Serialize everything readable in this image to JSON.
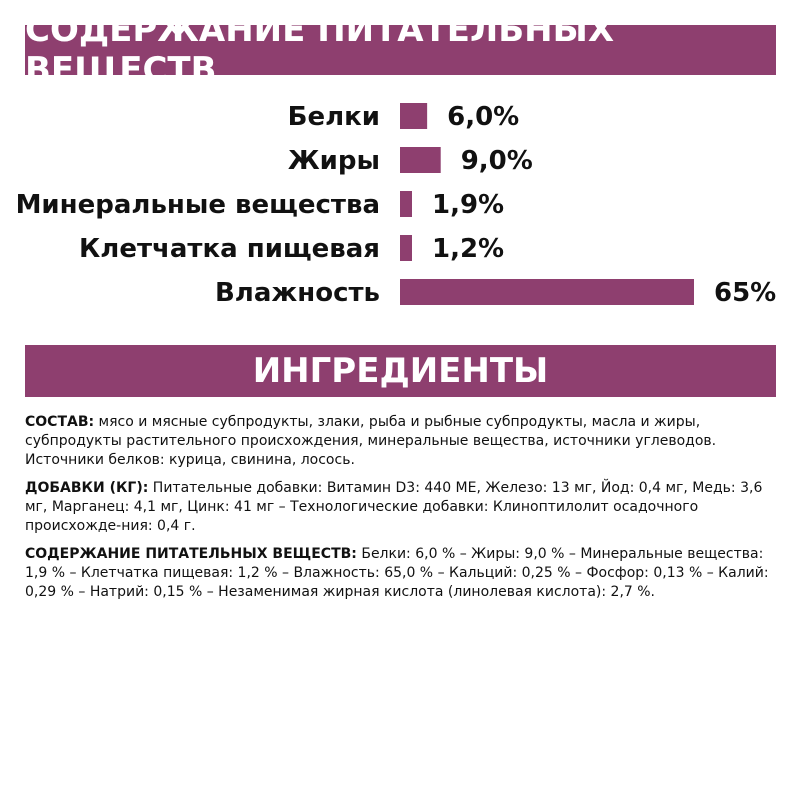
{
  "headings": {
    "nutrients": "СОДЕРЖАНИЕ ПИТАТЕЛЬНЫХ ВЕЩЕСТВ",
    "ingredients": "ИНГРЕДИЕНТЫ"
  },
  "colors": {
    "accent": "#8e3f6f",
    "text": "#111111"
  },
  "chart_data": {
    "type": "bar",
    "orientation": "horizontal",
    "categories": [
      "Белки",
      "Жиры",
      "Минеральные вещества",
      "Клетчатка пищевая",
      "Влажность"
    ],
    "values": [
      6.0,
      9.0,
      1.9,
      1.2,
      65
    ],
    "value_labels": [
      "6,0%",
      "9,0%",
      "1,9%",
      "1,2%",
      "65%"
    ],
    "unit": "%",
    "grid": false,
    "legend": false
  },
  "ingredients": {
    "composition_label": "СОСТАВ:",
    "composition_text": " мясо и мясные субпродукты, злаки, рыба и рыбные субпродукты, масла и жиры, субпродукты растительного происхождения, минеральные вещества, источники углеводов. Источники белков: курица, свинина, лосось.",
    "additives_label": "ДОБАВКИ (КГ):",
    "additives_text": " Питательные добавки: Витамин D3: 440 МЕ, Железо: 13 мг, Йод: 0,4 мг, Медь: 3,6 мг, Марганец: 4,1 мг, Цинк: 41 мг – Технологические добавки: Клиноптилолит осадочного происхожде-ния: 0,4 г.",
    "nutrients_label": "СОДЕРЖАНИЕ ПИТАТЕЛЬНЫХ ВЕЩЕСТВ:",
    "nutrients_text": " Белки: 6,0 % – Жиры: 9,0 % – Минеральные вещества: 1,9 % – Клетчатка пищевая: 1,2 % – Влажность: 65,0 % – Кальций: 0,25 % – Фосфор: 0,13 % – Калий: 0,29 % – Натрий: 0,15 % – Незаменимая жирная кислота (линолевая кислота): 2,7 %."
  }
}
